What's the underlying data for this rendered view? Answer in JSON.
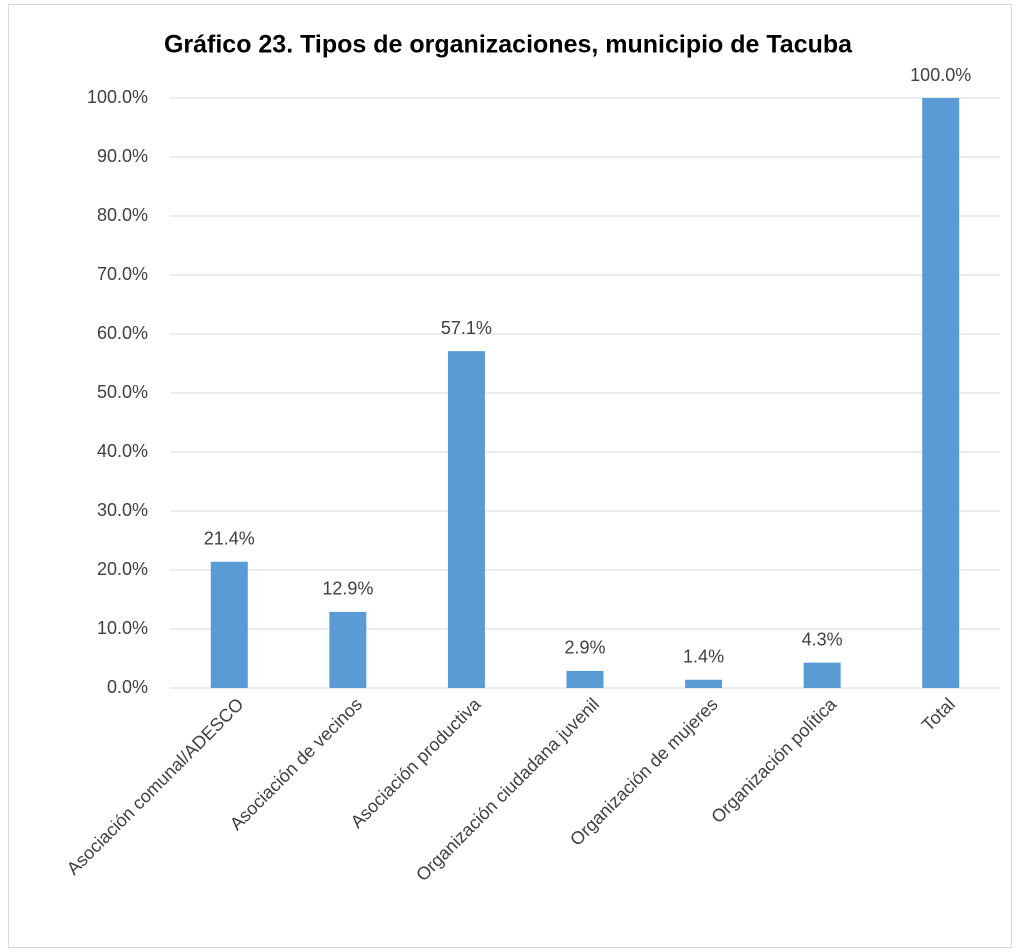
{
  "chart_data": {
    "type": "bar",
    "title": "Gráfico 23. Tipos de organizaciones, municipio de Tacuba",
    "categories": [
      "Asociación comunal/ADESCO",
      "Asociación de vecinos",
      "Asociación productiva",
      "Organización ciudadana juvenil",
      "Organización de mujeres",
      "Organización política",
      "Total"
    ],
    "values": [
      21.4,
      12.9,
      57.1,
      2.9,
      1.4,
      4.3,
      100.0
    ],
    "value_labels": [
      "21.4%",
      "12.9%",
      "57.1%",
      "2.9%",
      "1.4%",
      "4.3%",
      "100.0%"
    ],
    "color": "#5b9bd5",
    "ylim": [
      0,
      100
    ],
    "yticks": [
      {
        "value": 0,
        "label": "0.0%"
      },
      {
        "value": 10,
        "label": "10.0%"
      },
      {
        "value": 20,
        "label": "20.0%"
      },
      {
        "value": 30,
        "label": "30.0%"
      },
      {
        "value": 40,
        "label": "40.0%"
      },
      {
        "value": 50,
        "label": "50.0%"
      },
      {
        "value": 60,
        "label": "60.0%"
      },
      {
        "value": 70,
        "label": "70.0%"
      },
      {
        "value": 80,
        "label": "80.0%"
      },
      {
        "value": 90,
        "label": "90.0%"
      },
      {
        "value": 100,
        "label": "100.0%"
      }
    ],
    "grid": true
  }
}
